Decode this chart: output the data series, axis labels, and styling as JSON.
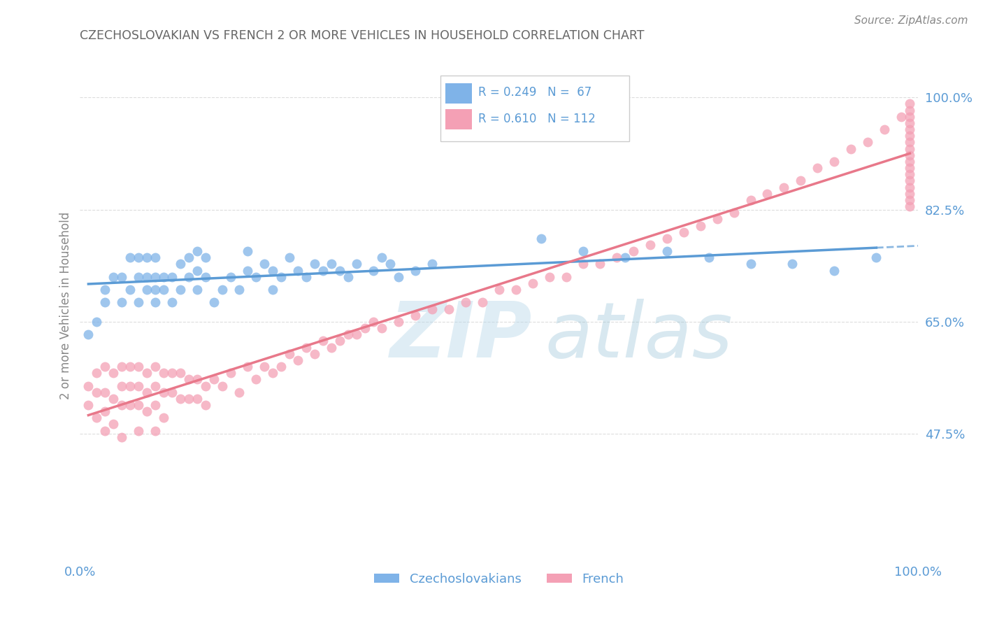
{
  "title": "CZECHOSLOVAKIAN VS FRENCH 2 OR MORE VEHICLES IN HOUSEHOLD CORRELATION CHART",
  "source": "Source: ZipAtlas.com",
  "ylabel": "2 or more Vehicles in Household",
  "xlim": [
    0,
    100
  ],
  "ylim": [
    28,
    107
  ],
  "yticks": [
    47.5,
    65.0,
    82.5,
    100.0
  ],
  "ytick_labels": [
    "47.5%",
    "65.0%",
    "82.5%",
    "100.0%"
  ],
  "xtick_labels": [
    "0.0%",
    "100.0%"
  ],
  "czech_color": "#7fb3e8",
  "french_color": "#f4a0b5",
  "czech_line_color": "#5b9bd5",
  "french_line_color": "#e8788a",
  "title_color": "#666666",
  "axis_label_color": "#888888",
  "tick_color": "#5b9bd5",
  "grid_color": "#dddddd",
  "watermark_color": "#cce5f0",
  "czech_x": [
    1,
    2,
    3,
    3,
    4,
    5,
    5,
    6,
    6,
    7,
    7,
    7,
    8,
    8,
    8,
    9,
    9,
    9,
    9,
    10,
    10,
    11,
    11,
    12,
    12,
    13,
    13,
    14,
    14,
    14,
    15,
    15,
    16,
    17,
    18,
    19,
    20,
    20,
    21,
    22,
    23,
    23,
    24,
    25,
    26,
    27,
    28,
    29,
    30,
    31,
    32,
    33,
    35,
    36,
    37,
    38,
    40,
    42,
    55,
    60,
    65,
    70,
    75,
    80,
    85,
    90,
    95
  ],
  "czech_y": [
    63,
    65,
    68,
    70,
    72,
    68,
    72,
    70,
    75,
    68,
    72,
    75,
    70,
    72,
    75,
    68,
    70,
    72,
    75,
    70,
    72,
    68,
    72,
    70,
    74,
    72,
    75,
    70,
    73,
    76,
    72,
    75,
    68,
    70,
    72,
    70,
    73,
    76,
    72,
    74,
    70,
    73,
    72,
    75,
    73,
    72,
    74,
    73,
    74,
    73,
    72,
    74,
    73,
    75,
    74,
    72,
    73,
    74,
    78,
    76,
    75,
    76,
    75,
    74,
    74,
    73,
    75
  ],
  "french_x": [
    1,
    1,
    2,
    2,
    2,
    3,
    3,
    3,
    3,
    4,
    4,
    4,
    5,
    5,
    5,
    5,
    6,
    6,
    6,
    7,
    7,
    7,
    7,
    8,
    8,
    8,
    9,
    9,
    9,
    9,
    10,
    10,
    10,
    11,
    11,
    12,
    12,
    13,
    13,
    14,
    14,
    15,
    15,
    16,
    17,
    18,
    19,
    20,
    21,
    22,
    23,
    24,
    25,
    26,
    27,
    28,
    29,
    30,
    31,
    32,
    33,
    34,
    35,
    36,
    38,
    40,
    42,
    44,
    46,
    48,
    50,
    52,
    54,
    56,
    58,
    60,
    62,
    64,
    66,
    68,
    70,
    72,
    74,
    76,
    78,
    80,
    82,
    84,
    86,
    88,
    90,
    92,
    94,
    96,
    98,
    99,
    99,
    99,
    99,
    99,
    99,
    99,
    99,
    99,
    99,
    99,
    99,
    99,
    99,
    99,
    99,
    99
  ],
  "french_y": [
    55,
    52,
    57,
    54,
    50,
    58,
    54,
    51,
    48,
    57,
    53,
    49,
    58,
    55,
    52,
    47,
    58,
    55,
    52,
    58,
    55,
    52,
    48,
    57,
    54,
    51,
    58,
    55,
    52,
    48,
    57,
    54,
    50,
    57,
    54,
    57,
    53,
    56,
    53,
    56,
    53,
    55,
    52,
    56,
    55,
    57,
    54,
    58,
    56,
    58,
    57,
    58,
    60,
    59,
    61,
    60,
    62,
    61,
    62,
    63,
    63,
    64,
    65,
    64,
    65,
    66,
    67,
    67,
    68,
    68,
    70,
    70,
    71,
    72,
    72,
    74,
    74,
    75,
    76,
    77,
    78,
    79,
    80,
    81,
    82,
    84,
    85,
    86,
    87,
    89,
    90,
    92,
    93,
    95,
    97,
    99,
    98,
    97,
    96,
    95,
    94,
    93,
    92,
    91,
    90,
    89,
    88,
    87,
    86,
    85,
    84,
    83
  ]
}
